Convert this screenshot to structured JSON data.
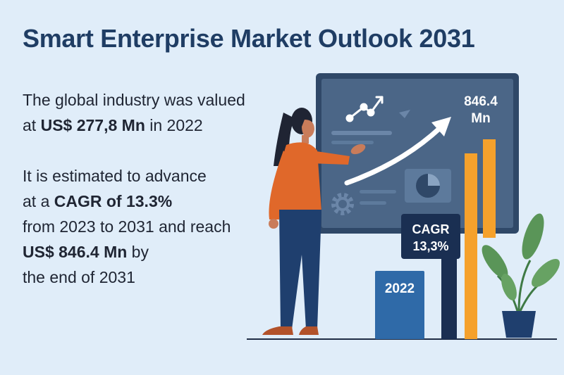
{
  "title": "Smart Enterprise Market Outlook 2031",
  "paragraph1": {
    "line1": "The global industry was valued",
    "line2_prefix": "at ",
    "line2_bold": "US$ 277,8 Mn",
    "line2_suffix": " in 2022"
  },
  "paragraph2": {
    "line1": "It is estimated to advance",
    "line2_prefix": "at a ",
    "line2_bold": "CAGR of 13.3%",
    "line3": "from 2023 to 2031 and reach",
    "line4_bold": "US$ 846.4 Mn",
    "line4_suffix": " by",
    "line5": "the end of 2031"
  },
  "illustration": {
    "screen_value_line1": "846.4",
    "screen_value_line2": "Mn",
    "cagr_line1": "CAGR",
    "cagr_line2": "13,3%",
    "bar_label_2022": "2022"
  },
  "colors": {
    "background": "#e0edf9",
    "title": "#1f3d64",
    "screen": "#4b6687",
    "bar_blue": "#2f6aa8",
    "bar_orange": "#f5a12c",
    "navy": "#1a2f52",
    "shirt": "#e0682a",
    "pants": "#1f3f6e",
    "plant": "#5a9558"
  }
}
